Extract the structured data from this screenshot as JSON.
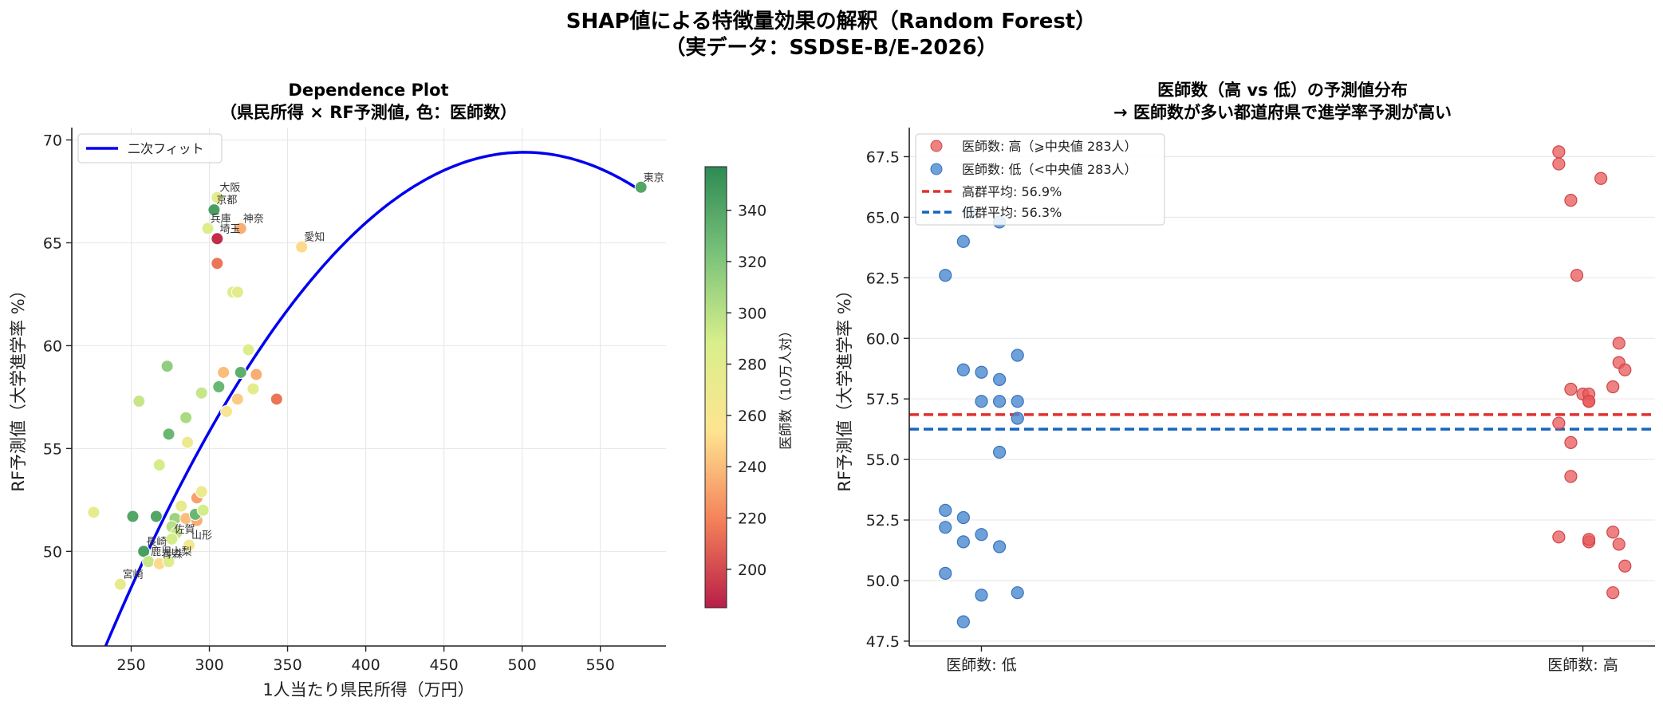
{
  "figure": {
    "title_line1": "SHAP値による特徴量効果の解釈（Random Forest）",
    "title_line2": "（実データ：SSDSE-B/E-2026）"
  },
  "colors": {
    "fit_line": "#0000ee",
    "high_points": "#e8585a",
    "low_points": "#4a88d0",
    "high_mean": "#e03030",
    "low_mean": "#1565c0",
    "colormap": [
      "#b81e48",
      "#f4825a",
      "#fee491",
      "#d9ef8b",
      "#7bc37a",
      "#2e8a54"
    ]
  },
  "chart_data": [
    {
      "type": "scatter",
      "title_line1": "Dependence Plot",
      "title_line2": "（県民所得 × RF予測値, 色：医師数）",
      "xlabel": "1人当たり県民所得（万円）",
      "ylabel": "RF予測値（大学進学率 %）",
      "xlim": [
        212,
        592
      ],
      "ylim": [
        45.4,
        70.6
      ],
      "xticks": [
        250,
        300,
        350,
        400,
        450,
        500,
        550
      ],
      "yticks": [
        50,
        55,
        60,
        65,
        70
      ],
      "grid": true,
      "legend": {
        "position": "top-left",
        "entries": [
          "二次フィット"
        ]
      },
      "colorbar": {
        "label": "医師数（10万人対）",
        "range": [
          185,
          357
        ],
        "ticks": [
          200,
          220,
          240,
          260,
          280,
          300,
          320,
          340
        ]
      },
      "fit": {
        "type": "quadratic",
        "a": -0.0003352,
        "b": 0.336,
        "c": -14.8,
        "x_range": [
          226,
          576
        ]
      },
      "points": [
        {
          "x": 576,
          "y": 67.7,
          "c": 340,
          "label": "東京"
        },
        {
          "x": 305,
          "y": 67.2,
          "c": 280,
          "label": "大阪"
        },
        {
          "x": 303,
          "y": 66.6,
          "c": 345,
          "label": "京都"
        },
        {
          "x": 299,
          "y": 65.7,
          "c": 285,
          "label": "兵庫"
        },
        {
          "x": 320,
          "y": 65.7,
          "c": 235,
          "label": "神奈"
        },
        {
          "x": 305,
          "y": 65.2,
          "c": 190,
          "label": "埼玉"
        },
        {
          "x": 359,
          "y": 64.8,
          "c": 250,
          "label": "愛知"
        },
        {
          "x": 305,
          "y": 64.0,
          "c": 215
        },
        {
          "x": 315,
          "y": 62.6,
          "c": 285
        },
        {
          "x": 318,
          "y": 62.6,
          "c": 280
        },
        {
          "x": 273,
          "y": 59.0,
          "c": 315
        },
        {
          "x": 325,
          "y": 59.8,
          "c": 285
        },
        {
          "x": 320,
          "y": 58.7,
          "c": 335
        },
        {
          "x": 309,
          "y": 58.7,
          "c": 240
        },
        {
          "x": 330,
          "y": 58.6,
          "c": 235
        },
        {
          "x": 306,
          "y": 58.0,
          "c": 330
        },
        {
          "x": 295,
          "y": 57.7,
          "c": 295
        },
        {
          "x": 328,
          "y": 57.9,
          "c": 280
        },
        {
          "x": 318,
          "y": 57.4,
          "c": 245
        },
        {
          "x": 343,
          "y": 57.4,
          "c": 215
        },
        {
          "x": 255,
          "y": 57.3,
          "c": 295
        },
        {
          "x": 311,
          "y": 56.8,
          "c": 260
        },
        {
          "x": 285,
          "y": 56.5,
          "c": 305
        },
        {
          "x": 274,
          "y": 55.7,
          "c": 330
        },
        {
          "x": 286,
          "y": 55.3,
          "c": 270
        },
        {
          "x": 268,
          "y": 54.2,
          "c": 290
        },
        {
          "x": 226,
          "y": 51.9,
          "c": 275
        },
        {
          "x": 251,
          "y": 51.7,
          "c": 340
        },
        {
          "x": 266,
          "y": 51.7,
          "c": 340
        },
        {
          "x": 278,
          "y": 51.6,
          "c": 310
        },
        {
          "x": 285,
          "y": 51.6,
          "c": 240
        },
        {
          "x": 292,
          "y": 51.5,
          "c": 235
        },
        {
          "x": 291,
          "y": 51.8,
          "c": 330
        },
        {
          "x": 296,
          "y": 52.0,
          "c": 290
        },
        {
          "x": 282,
          "y": 52.2,
          "c": 275
        },
        {
          "x": 292,
          "y": 52.6,
          "c": 230
        },
        {
          "x": 295,
          "y": 52.9,
          "c": 270
        },
        {
          "x": 276,
          "y": 51.2,
          "c": 300
        },
        {
          "x": 279,
          "y": 50.9,
          "c": 295
        },
        {
          "x": 276,
          "y": 50.6,
          "c": 290,
          "label": "佐賀"
        },
        {
          "x": 287,
          "y": 50.3,
          "c": 265,
          "label": "山形"
        },
        {
          "x": 258,
          "y": 50.0,
          "c": 345,
          "label": "長崎"
        },
        {
          "x": 261,
          "y": 49.5,
          "c": 295,
          "label": "鹿児"
        },
        {
          "x": 268,
          "y": 49.4,
          "c": 250,
          "label": "青森"
        },
        {
          "x": 274,
          "y": 49.5,
          "c": 285,
          "label": "山梨"
        },
        {
          "x": 243,
          "y": 48.4,
          "c": 275,
          "label": "宮崎"
        }
      ]
    },
    {
      "type": "scatter",
      "title_line1": "医師数（高 vs 低）の予測値分布",
      "title_line2": "→ 医師数が多い都道府県で進学率予測が高い",
      "ylabel": "RF予測値（大学進学率 %）",
      "categories": [
        "医師数: 低",
        "医師数: 高"
      ],
      "xlim": [
        -0.12,
        1.12
      ],
      "ylim": [
        47.3,
        68.7
      ],
      "yticks": [
        47.5,
        50.0,
        52.5,
        55.0,
        57.5,
        60.0,
        62.5,
        65.0,
        67.5
      ],
      "ytick_labels": [
        "47.5",
        "50.0",
        "52.5",
        "55.0",
        "57.5",
        "60.0",
        "62.5",
        "65.0",
        "67.5"
      ],
      "grid": "y",
      "legend": {
        "position": "top-left"
      },
      "series": [
        {
          "name": "医師数: 高（⩾中央値 283人）",
          "x": [
            0.96,
            0.96,
            0.98,
            1.03,
            0.99,
            1.06,
            1.06,
            1.07,
            1.0,
            1.01,
            1.01,
            1.01,
            1.05,
            0.98,
            0.98,
            0.96,
            0.98,
            1.01,
            1.05,
            1.01,
            1.06,
            0.96,
            1.05,
            1.07
          ],
          "y": [
            67.7,
            67.2,
            65.7,
            66.6,
            62.6,
            59.8,
            59.0,
            58.7,
            57.7,
            57.7,
            57.4,
            57.4,
            58.0,
            57.9,
            55.7,
            56.5,
            54.3,
            51.6,
            52.0,
            51.7,
            51.5,
            51.8,
            49.5,
            50.6
          ]
        },
        {
          "name": "医師数: 低（<中央値 283人）",
          "x": [
            -0.06,
            -0.03,
            -0.03,
            0.0,
            0.03,
            0.03,
            0.06,
            0.0,
            0.03,
            0.06,
            0.06,
            0.03,
            -0.06,
            -0.06,
            -0.03,
            -0.03,
            0.0,
            0.03,
            -0.06,
            0.0,
            -0.03,
            0.06,
            -0.02
          ],
          "y": [
            62.6,
            64.0,
            58.7,
            58.6,
            58.3,
            57.4,
            59.3,
            57.4,
            55.3,
            57.4,
            56.7,
            64.8,
            52.9,
            52.2,
            52.6,
            51.6,
            51.9,
            51.4,
            50.3,
            49.4,
            48.3,
            49.5,
            65.2
          ]
        },
        {
          "name": "高群平均: 56.9%",
          "kind": "hline",
          "y": 56.85
        },
        {
          "name": "低群平均: 56.3%",
          "kind": "hline",
          "y": 56.25
        }
      ]
    }
  ]
}
